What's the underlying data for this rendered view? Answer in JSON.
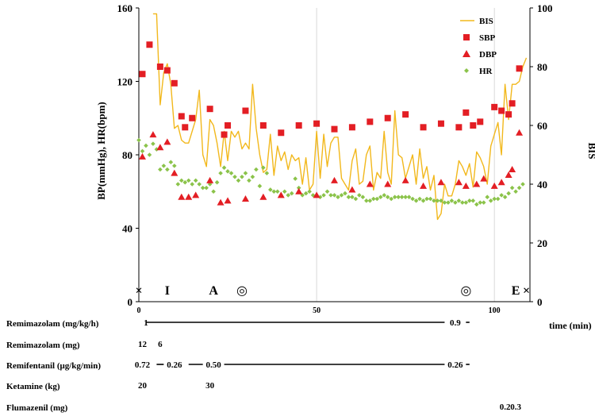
{
  "chart_data": {
    "type": "scatter",
    "title": "",
    "xlabel": "time (min)",
    "ylabel": "BP(mmHg), HR(bpm)",
    "y2label": "BIS",
    "xlim": [
      0,
      110
    ],
    "ylim": [
      0,
      160
    ],
    "y2lim": [
      0,
      100
    ],
    "xticks": [
      0,
      50,
      100
    ],
    "yticks": [
      0,
      40,
      80,
      120,
      160
    ],
    "y2ticks": [
      0,
      20,
      40,
      60,
      80,
      100
    ],
    "grid": "vertical",
    "legend_position": "top-right",
    "legend": [
      "BIS",
      "SBP",
      "DBP",
      "HR"
    ],
    "events": [
      {
        "symbol": "×",
        "x": 0
      },
      {
        "symbol": "I",
        "x": 8
      },
      {
        "symbol": "A",
        "x": 21
      },
      {
        "symbol": "◎",
        "x": 29
      },
      {
        "symbol": "◎",
        "x": 92
      },
      {
        "symbol": "E",
        "x": 106
      },
      {
        "symbol": "×",
        "x": 109
      }
    ],
    "series": [
      {
        "name": "BIS",
        "style": "line",
        "color": "#F2B81C",
        "x": [
          4,
          5,
          6,
          7,
          8,
          9,
          10,
          11,
          12,
          13,
          14,
          15,
          16,
          17,
          18,
          19,
          20,
          21,
          22,
          23,
          24,
          25,
          26,
          27,
          28,
          29,
          30,
          31,
          32,
          33,
          34,
          35,
          36,
          37,
          38,
          39,
          40,
          41,
          42,
          43,
          44,
          45,
          46,
          47,
          48,
          49,
          50,
          51,
          52,
          53,
          54,
          55,
          56,
          57,
          58,
          59,
          60,
          61,
          62,
          63,
          64,
          65,
          66,
          67,
          68,
          69,
          70,
          71,
          72,
          73,
          74,
          75,
          76,
          77,
          78,
          79,
          80,
          81,
          82,
          83,
          84,
          85,
          86,
          87,
          88,
          89,
          90,
          91,
          92,
          93,
          94,
          95,
          96,
          97,
          98,
          99,
          100,
          101,
          102,
          103,
          104,
          105,
          106,
          107,
          108,
          109
        ],
        "values": [
          98,
          98,
          67,
          78,
          81,
          74,
          59,
          60,
          55,
          54,
          54,
          58,
          62,
          72,
          50,
          46,
          62,
          60,
          54,
          46,
          58,
          48,
          58,
          56,
          58,
          52,
          54,
          52,
          74,
          59,
          50,
          44,
          45,
          57,
          43,
          53,
          48,
          51,
          45,
          50,
          48,
          49,
          40,
          49,
          38,
          40,
          58,
          42,
          57,
          46,
          54,
          56,
          56,
          42,
          40,
          38,
          48,
          52,
          40,
          41,
          50,
          53,
          38,
          44,
          42,
          58,
          44,
          40,
          65,
          50,
          49,
          42,
          46,
          50,
          40,
          52,
          42,
          46,
          38,
          43,
          28,
          30,
          40,
          36,
          36,
          40,
          48,
          46,
          43,
          47,
          39,
          51,
          49,
          46,
          40,
          53,
          57,
          61,
          50,
          74,
          62,
          74,
          74,
          75,
          80,
          83
        ]
      },
      {
        "name": "SBP",
        "style": "square",
        "color": "#E31E24",
        "x": [
          1,
          3,
          6,
          8,
          10,
          12,
          13,
          15,
          20,
          24,
          25,
          30,
          35,
          40,
          45,
          50,
          55,
          60,
          65,
          70,
          75,
          80,
          85,
          90,
          92,
          94,
          96,
          100,
          102,
          104,
          105,
          107
        ],
        "values": [
          124,
          140,
          128,
          126,
          119,
          101,
          95,
          100,
          105,
          91,
          96,
          104,
          96,
          92,
          96,
          97,
          94,
          95,
          98,
          100,
          102,
          95,
          97,
          95,
          103,
          96,
          98,
          106,
          104,
          102,
          108,
          127
        ]
      },
      {
        "name": "DBP",
        "style": "triangle",
        "color": "#E31E24",
        "x": [
          1,
          4,
          6,
          8,
          10,
          12,
          14,
          16,
          20,
          23,
          25,
          30,
          35,
          40,
          45,
          50,
          55,
          60,
          65,
          70,
          75,
          80,
          85,
          90,
          92,
          95,
          97,
          100,
          102,
          104,
          105,
          107
        ],
        "values": [
          79,
          91,
          84,
          87,
          70,
          57,
          57,
          58,
          66,
          54,
          55,
          56,
          57,
          58,
          60,
          58,
          66,
          61,
          64,
          64,
          66,
          63,
          65,
          65,
          63,
          64,
          67,
          63,
          65,
          69,
          72,
          92
        ]
      },
      {
        "name": "HR",
        "style": "diamond",
        "color": "#8BC34A",
        "x": [
          0,
          1,
          2,
          3,
          4,
          5,
          6,
          7,
          8,
          9,
          10,
          11,
          12,
          13,
          14,
          15,
          16,
          17,
          18,
          19,
          20,
          21,
          22,
          23,
          24,
          25,
          26,
          27,
          28,
          29,
          30,
          31,
          32,
          33,
          34,
          35,
          36,
          37,
          38,
          39,
          40,
          41,
          42,
          43,
          44,
          45,
          46,
          47,
          48,
          49,
          50,
          51,
          52,
          53,
          54,
          55,
          56,
          57,
          58,
          59,
          60,
          61,
          62,
          63,
          64,
          65,
          66,
          67,
          68,
          69,
          70,
          71,
          72,
          73,
          74,
          75,
          76,
          77,
          78,
          79,
          80,
          81,
          82,
          83,
          84,
          85,
          86,
          87,
          88,
          89,
          90,
          91,
          92,
          93,
          94,
          95,
          96,
          97,
          98,
          99,
          100,
          101,
          102,
          103,
          104,
          105,
          106,
          107,
          108
        ],
        "values": [
          88,
          82,
          85,
          80,
          86,
          83,
          72,
          74,
          72,
          76,
          74,
          64,
          66,
          65,
          66,
          64,
          66,
          64,
          62,
          62,
          64,
          60,
          65,
          70,
          73,
          71,
          70,
          68,
          66,
          68,
          70,
          66,
          68,
          72,
          63,
          73,
          70,
          61,
          60,
          60,
          58,
          60,
          58,
          59,
          67,
          62,
          58,
          59,
          60,
          58,
          58,
          57,
          58,
          60,
          58,
          58,
          57,
          58,
          59,
          57,
          57,
          56,
          58,
          57,
          55,
          55,
          56,
          56,
          57,
          58,
          57,
          56,
          57,
          57,
          57,
          57,
          57,
          56,
          55,
          56,
          55,
          56,
          56,
          55,
          55,
          55,
          54,
          54,
          55,
          54,
          55,
          54,
          54,
          55,
          55,
          53,
          54,
          54,
          57,
          55,
          56,
          56,
          58,
          57,
          59,
          62,
          60,
          62,
          64
        ]
      }
    ]
  },
  "drug_table": {
    "rows": [
      {
        "label": "Remimazolam (mg/kg/h)",
        "marks": [
          {
            "text": "1",
            "x": 2
          },
          {
            "text": "0.9",
            "x": 89
          }
        ],
        "lines": [
          {
            "from": 2,
            "to": 86
          },
          {
            "from": 92,
            "to": 93
          }
        ]
      },
      {
        "label": "Remimazolam (mg)",
        "marks": [
          {
            "text": "12",
            "x": 1
          },
          {
            "text": "6",
            "x": 6
          }
        ],
        "lines": []
      },
      {
        "label": "Remifentanil (μg/kg/min)",
        "marks": [
          {
            "text": "0.72",
            "x": 1
          },
          {
            "text": "0.26",
            "x": 10
          },
          {
            "text": "0.50",
            "x": 21
          },
          {
            "text": "0.26",
            "x": 89
          }
        ],
        "lines": [
          {
            "from": 5,
            "to": 7
          },
          {
            "from": 14,
            "to": 18
          },
          {
            "from": 24,
            "to": 86
          },
          {
            "from": 92,
            "to": 93
          }
        ]
      },
      {
        "label": "Ketamine (kg)",
        "marks": [
          {
            "text": "20",
            "x": 1
          },
          {
            "text": "30",
            "x": 20
          }
        ],
        "lines": []
      },
      {
        "label": "Flumazenil (mg)",
        "marks": [
          {
            "text": "0.2",
            "x": 103
          },
          {
            "text": "0.3",
            "x": 106
          }
        ],
        "lines": []
      }
    ]
  }
}
